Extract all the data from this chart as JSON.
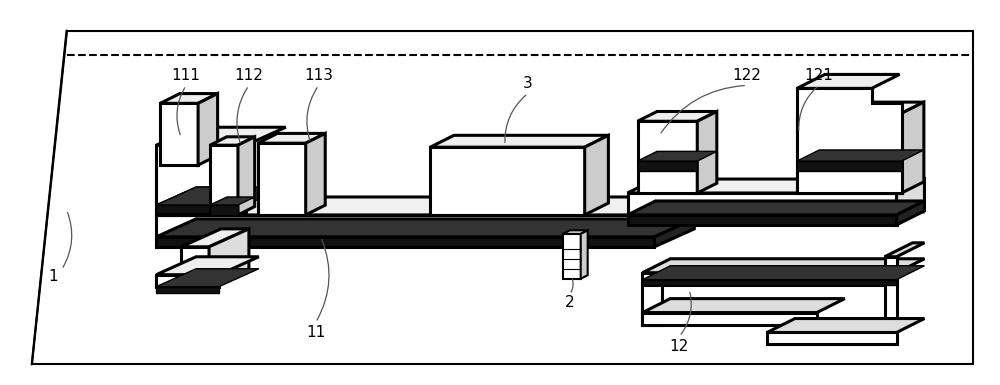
{
  "bg_color": "#ffffff",
  "lc": "#000000",
  "tlw": 2.2,
  "mlw": 1.5,
  "nlw": 0.9,
  "label_fs": 11,
  "fig_w": 10.0,
  "fig_h": 3.85,
  "dpi": 100
}
